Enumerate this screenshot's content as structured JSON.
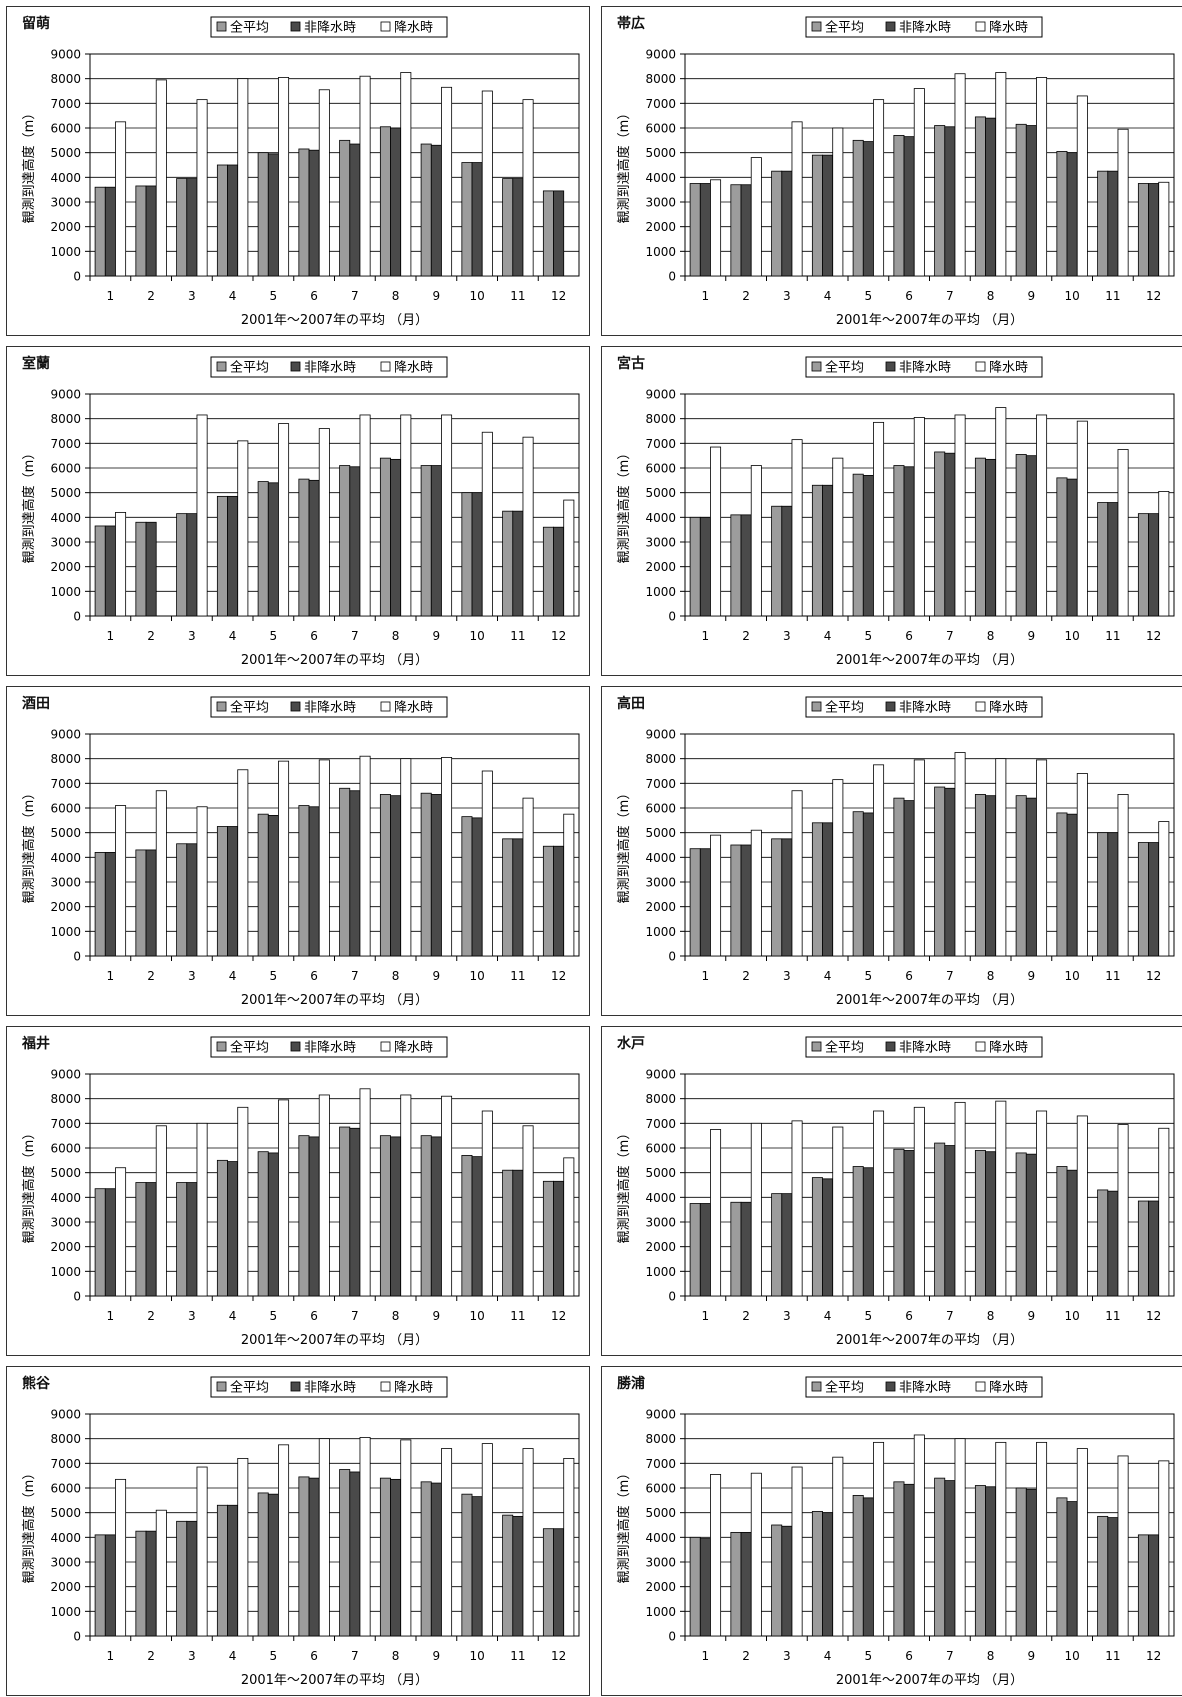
{
  "legend": [
    "全平均",
    "非降水時",
    "降水時"
  ],
  "xlabel": "2001年～2007年の平均 （月）",
  "ylabel": "観測到達高度（m）",
  "colors": {
    "all": "#9c9c9c",
    "dry": "#4a4a4a",
    "precip": "#ffffff",
    "axis": "#000000",
    "grid": "#000000"
  },
  "chart_data": [
    {
      "type": "bar",
      "title": "留萌",
      "categories": [
        "1",
        "2",
        "3",
        "4",
        "5",
        "6",
        "7",
        "8",
        "9",
        "10",
        "11",
        "12"
      ],
      "ylim": [
        0,
        9000
      ],
      "yticks": [
        "0",
        "1000",
        "2000",
        "3000",
        "4000",
        "5000",
        "6000",
        "7000",
        "8000",
        "9000"
      ],
      "series": [
        {
          "name": "全平均",
          "values": [
            3600,
            3650,
            3950,
            4500,
            5000,
            5150,
            5500,
            6050,
            5350,
            4600,
            3950,
            3450
          ]
        },
        {
          "name": "非降水時",
          "values": [
            3600,
            3650,
            3950,
            4500,
            4950,
            5100,
            5350,
            6000,
            5300,
            4600,
            3950,
            3450
          ]
        },
        {
          "name": "降水時",
          "values": [
            6250,
            7950,
            7150,
            8000,
            8050,
            7550,
            8100,
            8250,
            7650,
            7500,
            7150,
            0
          ]
        }
      ]
    },
    {
      "type": "bar",
      "title": "帯広",
      "categories": [
        "1",
        "2",
        "3",
        "4",
        "5",
        "6",
        "7",
        "8",
        "9",
        "10",
        "11",
        "12"
      ],
      "ylim": [
        0,
        9000
      ],
      "yticks": [
        "0",
        "1000",
        "2000",
        "3000",
        "4000",
        "5000",
        "6000",
        "7000",
        "8000",
        "9000"
      ],
      "series": [
        {
          "name": "全平均",
          "values": [
            3750,
            3700,
            4250,
            4900,
            5500,
            5700,
            6100,
            6450,
            6150,
            5050,
            4250,
            3750
          ]
        },
        {
          "name": "非降水時",
          "values": [
            3750,
            3700,
            4250,
            4900,
            5450,
            5650,
            6050,
            6400,
            6100,
            5000,
            4250,
            3750
          ]
        },
        {
          "name": "降水時",
          "values": [
            3900,
            4800,
            6250,
            6000,
            7150,
            7600,
            8200,
            8250,
            8050,
            7300,
            5950,
            3800
          ]
        }
      ]
    },
    {
      "type": "bar",
      "title": "室蘭",
      "categories": [
        "1",
        "2",
        "3",
        "4",
        "5",
        "6",
        "7",
        "8",
        "9",
        "10",
        "11",
        "12"
      ],
      "ylim": [
        0,
        9000
      ],
      "yticks": [
        "0",
        "1000",
        "2000",
        "3000",
        "4000",
        "5000",
        "6000",
        "7000",
        "8000",
        "9000"
      ],
      "series": [
        {
          "name": "全平均",
          "values": [
            3650,
            3800,
            4150,
            4850,
            5450,
            5550,
            6100,
            6400,
            6100,
            5000,
            4250,
            3600
          ]
        },
        {
          "name": "非降水時",
          "values": [
            3650,
            3800,
            4150,
            4850,
            5400,
            5500,
            6050,
            6350,
            6100,
            5000,
            4250,
            3600
          ]
        },
        {
          "name": "降水時",
          "values": [
            4200,
            0,
            8150,
            7100,
            7800,
            7600,
            8150,
            8150,
            8150,
            7450,
            7250,
            4700
          ]
        }
      ]
    },
    {
      "type": "bar",
      "title": "宮古",
      "categories": [
        "1",
        "2",
        "3",
        "4",
        "5",
        "6",
        "7",
        "8",
        "9",
        "10",
        "11",
        "12"
      ],
      "ylim": [
        0,
        9000
      ],
      "yticks": [
        "0",
        "1000",
        "2000",
        "3000",
        "4000",
        "5000",
        "6000",
        "7000",
        "8000",
        "9000"
      ],
      "series": [
        {
          "name": "全平均",
          "values": [
            4000,
            4100,
            4450,
            5300,
            5750,
            6100,
            6650,
            6400,
            6550,
            5600,
            4600,
            4150
          ]
        },
        {
          "name": "非降水時",
          "values": [
            4000,
            4100,
            4450,
            5300,
            5700,
            6050,
            6600,
            6350,
            6500,
            5550,
            4600,
            4150
          ]
        },
        {
          "name": "降水時",
          "values": [
            6850,
            6100,
            7150,
            6400,
            7850,
            8050,
            8150,
            8450,
            8150,
            7900,
            6750,
            5050
          ]
        }
      ]
    },
    {
      "type": "bar",
      "title": "酒田",
      "categories": [
        "1",
        "2",
        "3",
        "4",
        "5",
        "6",
        "7",
        "8",
        "9",
        "10",
        "11",
        "12"
      ],
      "ylim": [
        0,
        9000
      ],
      "yticks": [
        "0",
        "1000",
        "2000",
        "3000",
        "4000",
        "5000",
        "6000",
        "7000",
        "8000",
        "9000"
      ],
      "series": [
        {
          "name": "全平均",
          "values": [
            4200,
            4300,
            4550,
            5250,
            5750,
            6100,
            6800,
            6550,
            6600,
            5650,
            4750,
            4450
          ]
        },
        {
          "name": "非降水時",
          "values": [
            4200,
            4300,
            4550,
            5250,
            5700,
            6050,
            6700,
            6500,
            6550,
            5600,
            4750,
            4450
          ]
        },
        {
          "name": "降水時",
          "values": [
            6100,
            6700,
            6050,
            7550,
            7900,
            7950,
            8100,
            8000,
            8050,
            7500,
            6400,
            5750
          ]
        }
      ]
    },
    {
      "type": "bar",
      "title": "高田",
      "categories": [
        "1",
        "2",
        "3",
        "4",
        "5",
        "6",
        "7",
        "8",
        "9",
        "10",
        "11",
        "12"
      ],
      "ylim": [
        0,
        9000
      ],
      "yticks": [
        "0",
        "1000",
        "2000",
        "3000",
        "4000",
        "5000",
        "6000",
        "7000",
        "8000",
        "9000"
      ],
      "series": [
        {
          "name": "全平均",
          "values": [
            4350,
            4500,
            4750,
            5400,
            5850,
            6400,
            6850,
            6550,
            6500,
            5800,
            5000,
            4600
          ]
        },
        {
          "name": "非降水時",
          "values": [
            4350,
            4500,
            4750,
            5400,
            5800,
            6300,
            6800,
            6500,
            6400,
            5750,
            5000,
            4600
          ]
        },
        {
          "name": "降水時",
          "values": [
            4900,
            5100,
            6700,
            7150,
            7750,
            7950,
            8250,
            8000,
            7950,
            7400,
            6550,
            5450
          ]
        }
      ]
    },
    {
      "type": "bar",
      "title": "福井",
      "categories": [
        "1",
        "2",
        "3",
        "4",
        "5",
        "6",
        "7",
        "8",
        "9",
        "10",
        "11",
        "12"
      ],
      "ylim": [
        0,
        9000
      ],
      "yticks": [
        "0",
        "1000",
        "2000",
        "3000",
        "4000",
        "5000",
        "6000",
        "7000",
        "8000",
        "9000"
      ],
      "series": [
        {
          "name": "全平均",
          "values": [
            4350,
            4600,
            4600,
            5500,
            5850,
            6500,
            6850,
            6500,
            6500,
            5700,
            5100,
            4650
          ]
        },
        {
          "name": "非降水時",
          "values": [
            4350,
            4600,
            4600,
            5450,
            5800,
            6450,
            6800,
            6450,
            6450,
            5650,
            5100,
            4650
          ]
        },
        {
          "name": "降水時",
          "values": [
            5200,
            6900,
            7000,
            7650,
            7950,
            8150,
            8400,
            8150,
            8100,
            7500,
            6900,
            5600
          ]
        }
      ]
    },
    {
      "type": "bar",
      "title": "水戸",
      "categories": [
        "1",
        "2",
        "3",
        "4",
        "5",
        "6",
        "7",
        "8",
        "9",
        "10",
        "11",
        "12"
      ],
      "ylim": [
        0,
        9000
      ],
      "yticks": [
        "0",
        "1000",
        "2000",
        "3000",
        "4000",
        "5000",
        "6000",
        "7000",
        "8000",
        "9000"
      ],
      "series": [
        {
          "name": "全平均",
          "values": [
            3750,
            3800,
            4150,
            4800,
            5250,
            5950,
            6200,
            5900,
            5800,
            5250,
            4300,
            3850
          ]
        },
        {
          "name": "非降水時",
          "values": [
            3750,
            3800,
            4150,
            4750,
            5200,
            5900,
            6100,
            5850,
            5750,
            5100,
            4250,
            3850
          ]
        },
        {
          "name": "降水時",
          "values": [
            6750,
            7000,
            7100,
            6850,
            7500,
            7650,
            7850,
            7900,
            7500,
            7300,
            6950,
            6800
          ]
        }
      ]
    },
    {
      "type": "bar",
      "title": "熊谷",
      "categories": [
        "1",
        "2",
        "3",
        "4",
        "5",
        "6",
        "7",
        "8",
        "9",
        "10",
        "11",
        "12"
      ],
      "ylim": [
        0,
        9000
      ],
      "yticks": [
        "0",
        "1000",
        "2000",
        "3000",
        "4000",
        "5000",
        "6000",
        "7000",
        "8000",
        "9000"
      ],
      "series": [
        {
          "name": "全平均",
          "values": [
            4100,
            4250,
            4650,
            5300,
            5800,
            6450,
            6750,
            6400,
            6250,
            5750,
            4900,
            4350
          ]
        },
        {
          "name": "非降水時",
          "values": [
            4100,
            4250,
            4650,
            5300,
            5750,
            6400,
            6650,
            6350,
            6200,
            5650,
            4850,
            4350
          ]
        },
        {
          "name": "降水時",
          "values": [
            6350,
            5100,
            6850,
            7200,
            7750,
            8000,
            8050,
            7950,
            7600,
            7800,
            7600,
            7200
          ]
        }
      ]
    },
    {
      "type": "bar",
      "title": "勝浦",
      "categories": [
        "1",
        "2",
        "3",
        "4",
        "5",
        "6",
        "7",
        "8",
        "9",
        "10",
        "11",
        "12"
      ],
      "ylim": [
        0,
        9000
      ],
      "yticks": [
        "0",
        "1000",
        "2000",
        "3000",
        "4000",
        "5000",
        "6000",
        "7000",
        "8000",
        "9000"
      ],
      "series": [
        {
          "name": "全平均",
          "values": [
            4000,
            4200,
            4500,
            5050,
            5700,
            6250,
            6400,
            6100,
            6000,
            5600,
            4850,
            4100
          ]
        },
        {
          "name": "非降水時",
          "values": [
            3950,
            4200,
            4450,
            5000,
            5600,
            6150,
            6300,
            6050,
            5950,
            5450,
            4800,
            4100
          ]
        },
        {
          "name": "降水時",
          "values": [
            6550,
            6600,
            6850,
            7250,
            7850,
            8150,
            8000,
            7850,
            7850,
            7600,
            7300,
            7100
          ]
        }
      ]
    }
  ]
}
